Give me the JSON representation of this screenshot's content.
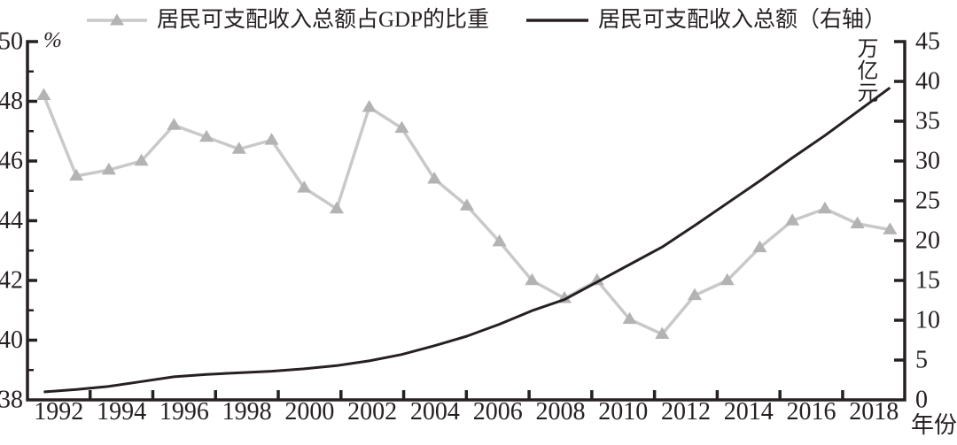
{
  "figure": {
    "background": "#ffffff",
    "ink_color": "#262021"
  },
  "chart_data": {
    "type": "line",
    "x": [
      1992,
      1993,
      1994,
      1995,
      1996,
      1997,
      1998,
      1999,
      2000,
      2001,
      2002,
      2003,
      2004,
      2005,
      2006,
      2007,
      2008,
      2009,
      2010,
      2011,
      2012,
      2013,
      2014,
      2015,
      2016,
      2017,
      2018
    ],
    "x_tick_labels": [
      "1992",
      "1994",
      "1996",
      "1998",
      "2000",
      "2002",
      "2004",
      "2006",
      "2008",
      "2010",
      "2012",
      "2014",
      "2016",
      "2018"
    ],
    "series": [
      {
        "name": "居民可支配收入总额占GDP的比重",
        "axis": "left",
        "marker": "triangle",
        "line_color": "#c9c9c9",
        "marker_color": "#b3b3b3",
        "values": [
          48.2,
          45.5,
          45.7,
          46.0,
          47.2,
          46.8,
          46.4,
          46.7,
          45.1,
          44.4,
          47.8,
          47.1,
          45.4,
          44.5,
          43.3,
          42.0,
          41.4,
          42.0,
          40.7,
          40.2,
          41.5,
          42.0,
          43.1,
          44.0,
          44.4,
          43.9,
          43.7
        ]
      },
      {
        "name": "居民可支配收入总额（右轴）",
        "axis": "right",
        "marker": "none",
        "line_color": "#262021",
        "values": [
          1.0,
          1.3,
          1.7,
          2.3,
          2.9,
          3.2,
          3.4,
          3.6,
          3.9,
          4.3,
          4.9,
          5.7,
          6.8,
          8.0,
          9.5,
          11.2,
          12.6,
          14.8,
          17.0,
          19.2,
          21.9,
          24.7,
          27.5,
          30.4,
          33.2,
          36.2,
          39.2
        ]
      }
    ],
    "left_axis": {
      "unit": "%",
      "min": 38,
      "max": 50,
      "ticks": [
        38,
        40,
        42,
        44,
        46,
        48,
        50
      ],
      "minor_step": 1
    },
    "right_axis": {
      "unit": "万亿元",
      "min": 0,
      "max": 45,
      "ticks": [
        0,
        5,
        10,
        15,
        20,
        25,
        30,
        35,
        40,
        45
      ]
    },
    "x_axis": {
      "title": "年份"
    },
    "legend_position": "top",
    "grid": false
  }
}
